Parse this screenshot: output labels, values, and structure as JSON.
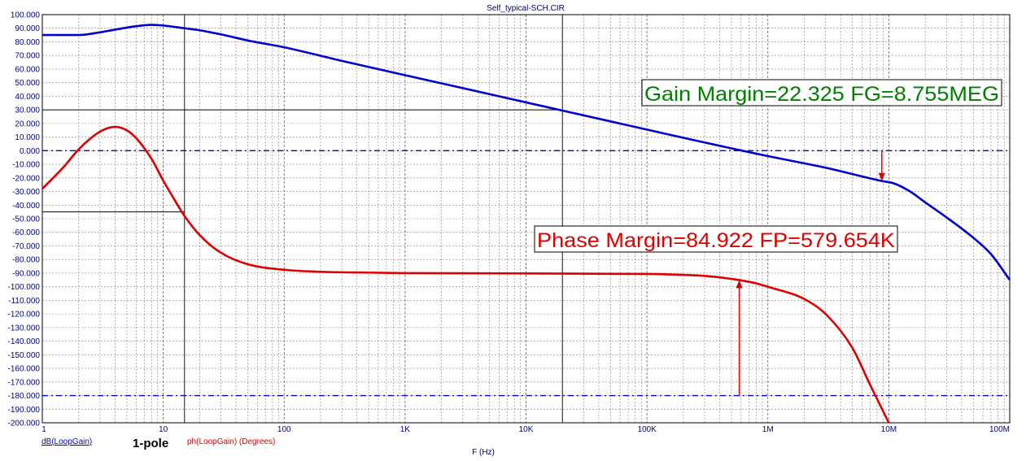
{
  "window": {
    "title": "Self_typical-SCH.CIR"
  },
  "colors": {
    "gain": "#0000cc",
    "phase": "#dd0000",
    "gm_text": "#008000",
    "pm_text": "#dd0000",
    "axis_text": "#000080",
    "grid": "#808080"
  },
  "chart_data": {
    "type": "line",
    "title": "Self_typical-SCH.CIR",
    "xlabel": "F (Hz)",
    "xscale": "log",
    "xlim": [
      1,
      100000000
    ],
    "ylim": [
      -200,
      100
    ],
    "grid": true,
    "x_tick_labels": [
      "1",
      "10",
      "100",
      "1K",
      "10K",
      "100K",
      "1M",
      "10M",
      "100M"
    ],
    "y_tick_labels": [
      "100.000",
      "90.000",
      "80.000",
      "70.000",
      "60.000",
      "50.000",
      "40.000",
      "30.000",
      "20.000",
      "10.000",
      "0.000",
      "-10.000",
      "-20.000",
      "-30.000",
      "-40.000",
      "-50.000",
      "-60.000",
      "-70.000",
      "-80.000",
      "-90.000",
      "-100.000",
      "-110.000",
      "-120.000",
      "-130.000",
      "-140.000",
      "-150.000",
      "-160.000",
      "-170.000",
      "-180.000",
      "-190.000",
      "-200.000"
    ],
    "series": [
      {
        "name": "dB(LoopGain)",
        "x": [
          1,
          2,
          3,
          4,
          6,
          8,
          10,
          15,
          20,
          30,
          50,
          100,
          300,
          1000,
          3000,
          10000,
          20000,
          100000,
          300000,
          579654,
          1000000,
          3000000,
          8755000,
          11000000,
          15000000,
          20000000,
          30000000,
          50000000,
          70000000,
          100000000
        ],
        "values": [
          85,
          85,
          87,
          89,
          91.5,
          92.5,
          92,
          90,
          88.5,
          85.5,
          81,
          76,
          66,
          55.5,
          46,
          35.5,
          29.5,
          15.5,
          6,
          0.5,
          -4,
          -12.5,
          -22.3,
          -24,
          -30,
          -38,
          -49,
          -64,
          -76,
          -95
        ]
      },
      {
        "name": "ph(LoopGain) (Degrees)",
        "x": [
          1,
          1.5,
          2,
          3,
          4,
          5,
          6,
          8,
          10,
          12,
          15,
          20,
          30,
          50,
          100,
          200,
          500,
          1000,
          10000,
          100000,
          200000,
          300000,
          579654,
          800000,
          1000000,
          2000000,
          3000000,
          5000000,
          7000000,
          10000000
        ],
        "values": [
          -28,
          -12,
          1,
          14,
          17.5,
          15,
          9,
          -6,
          -22,
          -34,
          -48,
          -62,
          -75,
          -83.5,
          -87.5,
          -89,
          -89.6,
          -90,
          -90.2,
          -90.6,
          -91.3,
          -92,
          -95.08,
          -97.5,
          -100,
          -109,
          -120,
          -145,
          -172,
          -200
        ]
      }
    ],
    "reference_lines": {
      "gain_db": 0,
      "phase_deg": -180
    },
    "cursor_lines": [
      {
        "x": 15,
        "y": -45
      },
      {
        "x": 20000,
        "y": 30
      }
    ],
    "markers": [
      {
        "series": "dB(LoopGain)",
        "x": 8755000,
        "from_y": 0,
        "to_y": -22.325
      },
      {
        "series": "ph(LoopGain) (Degrees)",
        "x": 579654,
        "from_y": -180,
        "to_y": -95.078
      }
    ]
  },
  "annotations": {
    "gain_margin": "Gain Margin=22.325 FG=8.755MEG",
    "phase_margin": "Phase Margin=84.922 FP=579.654K"
  },
  "legend": {
    "gain_label": "dB(LoopGain)",
    "phase_label": "ph(LoopGain) (Degrees)",
    "pole_label": "1-pole"
  }
}
